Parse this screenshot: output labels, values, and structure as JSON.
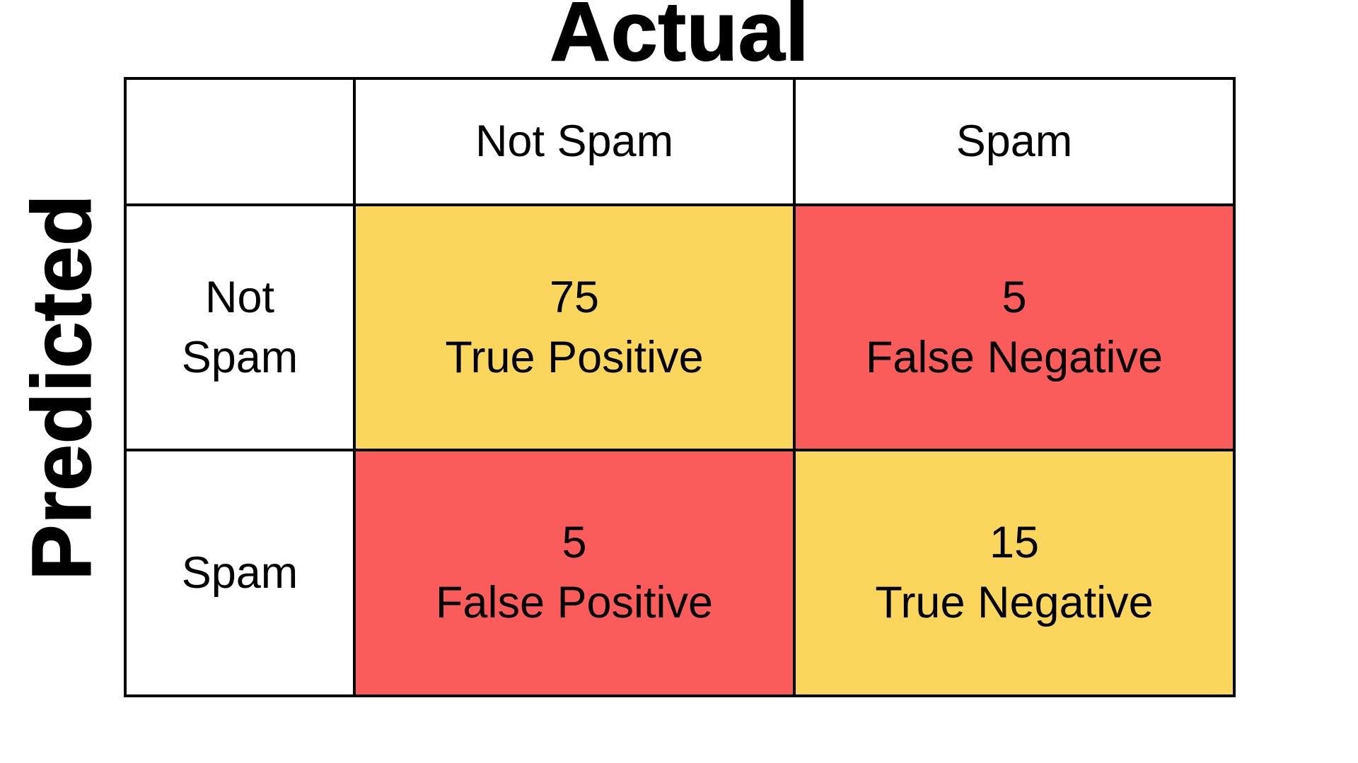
{
  "chart_data": {
    "type": "heatmap",
    "xlabel": "Actual",
    "ylabel": "Predicted",
    "xlabel_position": "top",
    "ylabel_position": "left",
    "columns": [
      "Not Spam",
      "Spam"
    ],
    "rows": [
      "Not Spam",
      "Spam"
    ],
    "values": [
      [
        75,
        5
      ],
      [
        5,
        15
      ]
    ],
    "cell_labels": [
      [
        "True Positive",
        "False Negative"
      ],
      [
        "False Positive",
        "True Negative"
      ]
    ],
    "cell_colors": [
      [
        "#FBD65C",
        "#FA5C5C"
      ],
      [
        "#FA5C5C",
        "#FBD65C"
      ]
    ]
  },
  "colors": {
    "yellow": "#FBD65C",
    "red": "#FA5C5C",
    "border": "#000000",
    "text": "#000000",
    "background": "#FFFFFF"
  }
}
